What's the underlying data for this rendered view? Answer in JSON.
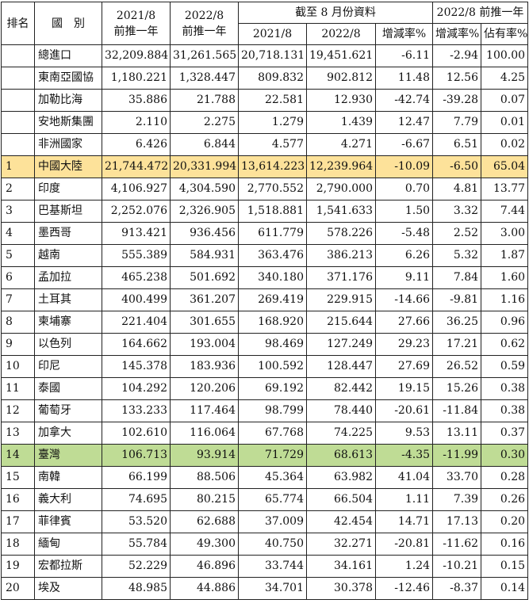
{
  "header": {
    "rank": "排名",
    "country": "國　別",
    "col1_year": "2021/8",
    "col1_sub": "前推一年",
    "col2_year": "2022/8",
    "col2_sub": "前推一年",
    "group_ytd": "截至 8 月份資料",
    "ytd_2021": "2021/8",
    "ytd_2022": "2022/8",
    "ytd_change": "增減率%",
    "group_trailing": "2022/8 前推一年",
    "trailing_change": "增減率%",
    "trailing_share": "佔有率%"
  },
  "rows": [
    {
      "rank": "",
      "name": "總進口",
      "v1": "32,209.884",
      "v2": "31,261.565",
      "v3": "20,718.131",
      "v4": "19,451.621",
      "v5": "-6.11",
      "v6": "-2.94",
      "v7": "100.00"
    },
    {
      "rank": "",
      "name": "東南亞國協",
      "v1": "1,180.221",
      "v2": "1,328.447",
      "v3": "809.832",
      "v4": "902.812",
      "v5": "11.48",
      "v6": "12.56",
      "v7": "4.25"
    },
    {
      "rank": "",
      "name": "加勒比海",
      "v1": "35.886",
      "v2": "21.788",
      "v3": "22.581",
      "v4": "12.930",
      "v5": "-42.74",
      "v6": "-39.28",
      "v7": "0.07"
    },
    {
      "rank": "",
      "name": "安地斯集團",
      "v1": "2.110",
      "v2": "2.275",
      "v3": "1.279",
      "v4": "1.439",
      "v5": "12.47",
      "v6": "7.79",
      "v7": "0.01"
    },
    {
      "rank": "",
      "name": "非洲國家",
      "v1": "6.426",
      "v2": "6.844",
      "v3": "4.577",
      "v4": "4.271",
      "v5": "-6.67",
      "v6": "6.51",
      "v7": "0.02"
    },
    {
      "rank": "1",
      "name": "中國大陸",
      "v1": "21,744.472",
      "v2": "20,331.994",
      "v3": "13,614.223",
      "v4": "12,239.964",
      "v5": "-10.09",
      "v6": "-6.50",
      "v7": "65.04",
      "hl": "china"
    },
    {
      "rank": "2",
      "name": "印度",
      "v1": "4,106.927",
      "v2": "4,304.590",
      "v3": "2,770.552",
      "v4": "2,790.000",
      "v5": "0.70",
      "v6": "4.81",
      "v7": "13.77"
    },
    {
      "rank": "3",
      "name": "巴基斯坦",
      "v1": "2,252.076",
      "v2": "2,326.905",
      "v3": "1,518.881",
      "v4": "1,541.633",
      "v5": "1.50",
      "v6": "3.32",
      "v7": "7.44"
    },
    {
      "rank": "4",
      "name": "墨西哥",
      "v1": "913.421",
      "v2": "936.456",
      "v3": "611.779",
      "v4": "578.226",
      "v5": "-5.48",
      "v6": "2.52",
      "v7": "3.00"
    },
    {
      "rank": "5",
      "name": "越南",
      "v1": "555.389",
      "v2": "584.931",
      "v3": "363.476",
      "v4": "386.213",
      "v5": "6.26",
      "v6": "5.32",
      "v7": "1.87"
    },
    {
      "rank": "6",
      "name": "孟加拉",
      "v1": "465.238",
      "v2": "501.692",
      "v3": "340.180",
      "v4": "371.176",
      "v5": "9.11",
      "v6": "7.84",
      "v7": "1.60"
    },
    {
      "rank": "7",
      "name": "土耳其",
      "v1": "400.499",
      "v2": "361.207",
      "v3": "269.419",
      "v4": "229.915",
      "v5": "-14.66",
      "v6": "-9.81",
      "v7": "1.16"
    },
    {
      "rank": "8",
      "name": "柬埔寨",
      "v1": "221.404",
      "v2": "301.655",
      "v3": "168.920",
      "v4": "215.644",
      "v5": "27.66",
      "v6": "36.25",
      "v7": "0.96"
    },
    {
      "rank": "9",
      "name": "以色列",
      "v1": "164.662",
      "v2": "193.004",
      "v3": "98.469",
      "v4": "127.249",
      "v5": "29.23",
      "v6": "17.21",
      "v7": "0.62"
    },
    {
      "rank": "10",
      "name": "印尼",
      "v1": "145.378",
      "v2": "183.936",
      "v3": "100.592",
      "v4": "128.447",
      "v5": "27.69",
      "v6": "26.52",
      "v7": "0.59"
    },
    {
      "rank": "11",
      "name": "泰國",
      "v1": "104.292",
      "v2": "120.206",
      "v3": "69.192",
      "v4": "82.442",
      "v5": "19.15",
      "v6": "15.26",
      "v7": "0.38"
    },
    {
      "rank": "12",
      "name": "葡萄牙",
      "v1": "133.233",
      "v2": "117.464",
      "v3": "98.799",
      "v4": "78.440",
      "v5": "-20.61",
      "v6": "-11.84",
      "v7": "0.38"
    },
    {
      "rank": "13",
      "name": "加拿大",
      "v1": "102.610",
      "v2": "116.064",
      "v3": "67.768",
      "v4": "74.225",
      "v5": "9.53",
      "v6": "13.11",
      "v7": "0.37"
    },
    {
      "rank": "14",
      "name": "臺灣",
      "v1": "106.713",
      "v2": "93.914",
      "v3": "71.729",
      "v4": "68.613",
      "v5": "-4.35",
      "v6": "-11.99",
      "v7": "0.30",
      "hl": "taiwan"
    },
    {
      "rank": "15",
      "name": "南韓",
      "v1": "66.199",
      "v2": "88.506",
      "v3": "45.364",
      "v4": "63.982",
      "v5": "41.04",
      "v6": "33.70",
      "v7": "0.28"
    },
    {
      "rank": "16",
      "name": "義大利",
      "v1": "74.695",
      "v2": "80.215",
      "v3": "65.774",
      "v4": "66.504",
      "v5": "1.11",
      "v6": "7.39",
      "v7": "0.26"
    },
    {
      "rank": "17",
      "name": "菲律賓",
      "v1": "53.520",
      "v2": "62.688",
      "v3": "37.009",
      "v4": "42.454",
      "v5": "14.71",
      "v6": "17.13",
      "v7": "0.20"
    },
    {
      "rank": "18",
      "name": "緬甸",
      "v1": "55.784",
      "v2": "49.300",
      "v3": "40.750",
      "v4": "32.271",
      "v5": "-20.81",
      "v6": "-11.62",
      "v7": "0.16"
    },
    {
      "rank": "19",
      "name": "宏都拉斯",
      "v1": "52.229",
      "v2": "46.896",
      "v3": "33.744",
      "v4": "34.161",
      "v5": "1.24",
      "v6": "-10.21",
      "v7": "0.15"
    },
    {
      "rank": "20",
      "name": "埃及",
      "v1": "48.985",
      "v2": "44.886",
      "v3": "34.701",
      "v4": "30.378",
      "v5": "-12.46",
      "v6": "-8.37",
      "v7": "0.14"
    }
  ]
}
